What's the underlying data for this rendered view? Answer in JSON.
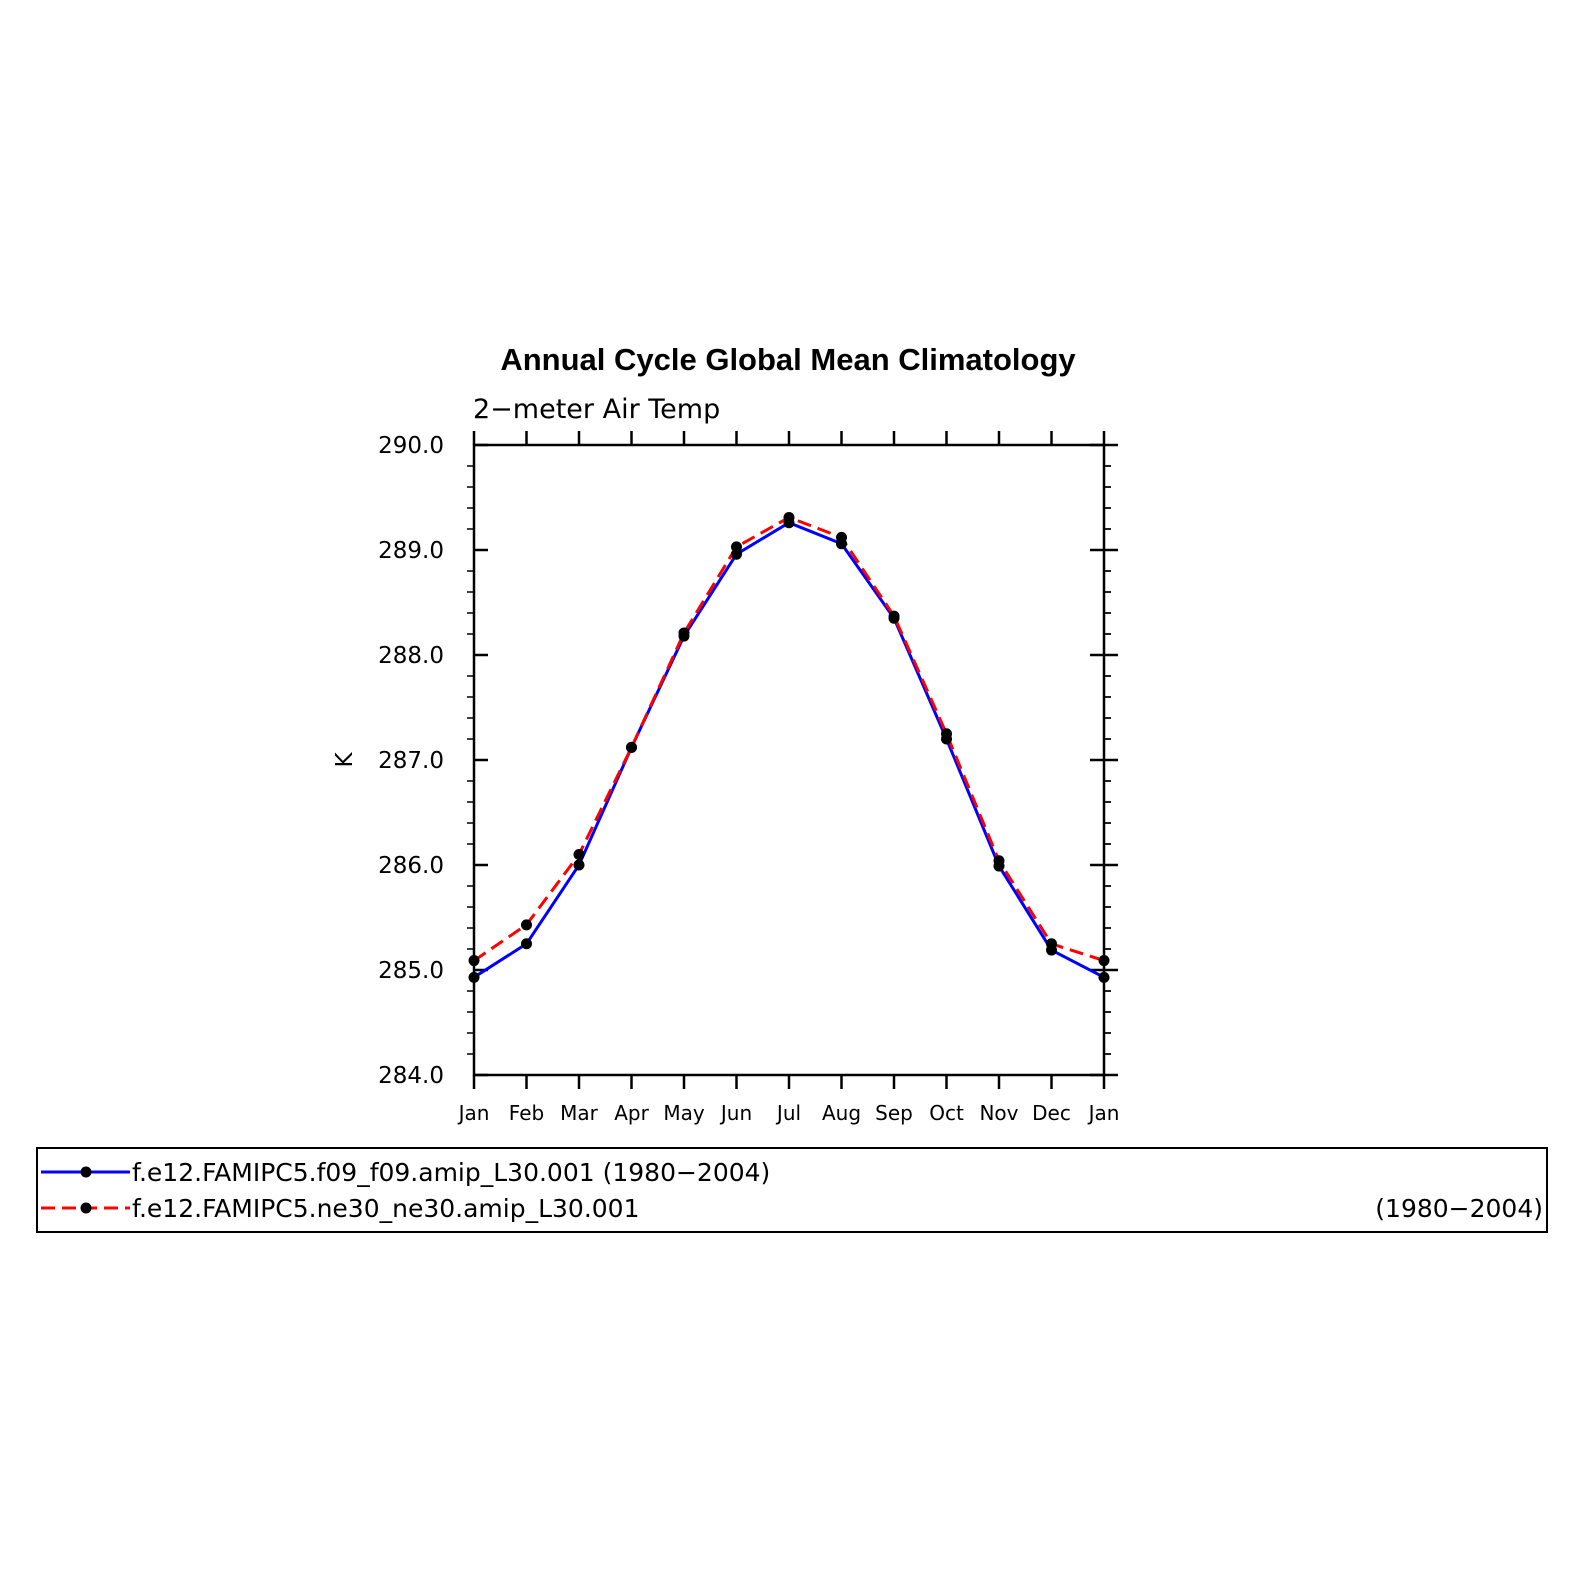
{
  "chart_data": {
    "type": "line",
    "title": "Annual Cycle Global Mean Climatology",
    "subtitle": "2−meter Air Temp",
    "ylabel": "K",
    "xlabel": "",
    "ylim": [
      284.0,
      290.0
    ],
    "yticks": [
      "284.0",
      "285.0",
      "286.0",
      "287.0",
      "288.0",
      "289.0",
      "290.0"
    ],
    "categories": [
      "Jan",
      "Feb",
      "Mar",
      "Apr",
      "May",
      "Jun",
      "Jul",
      "Aug",
      "Sep",
      "Oct",
      "Nov",
      "Dec",
      "Jan"
    ],
    "grid": false,
    "legend_position": "bottom",
    "series": [
      {
        "name": "f.e12.FAMIPC5.f09_f09.amip_L30.001",
        "period": "(1980−2004)",
        "color": "#0000ff",
        "dash": "solid",
        "values": [
          284.93,
          285.25,
          286.0,
          287.12,
          288.18,
          288.96,
          289.26,
          289.06,
          288.35,
          287.2,
          285.99,
          285.19,
          284.93
        ]
      },
      {
        "name": "f.e12.FAMIPC5.ne30_ne30.amip_L30.001",
        "period": "(1980−2004)",
        "color": "#ff0000",
        "dash": "dashed",
        "values": [
          285.09,
          285.43,
          286.1,
          287.12,
          288.21,
          289.03,
          289.31,
          289.12,
          288.37,
          287.25,
          286.04,
          285.25,
          285.09
        ]
      }
    ]
  }
}
